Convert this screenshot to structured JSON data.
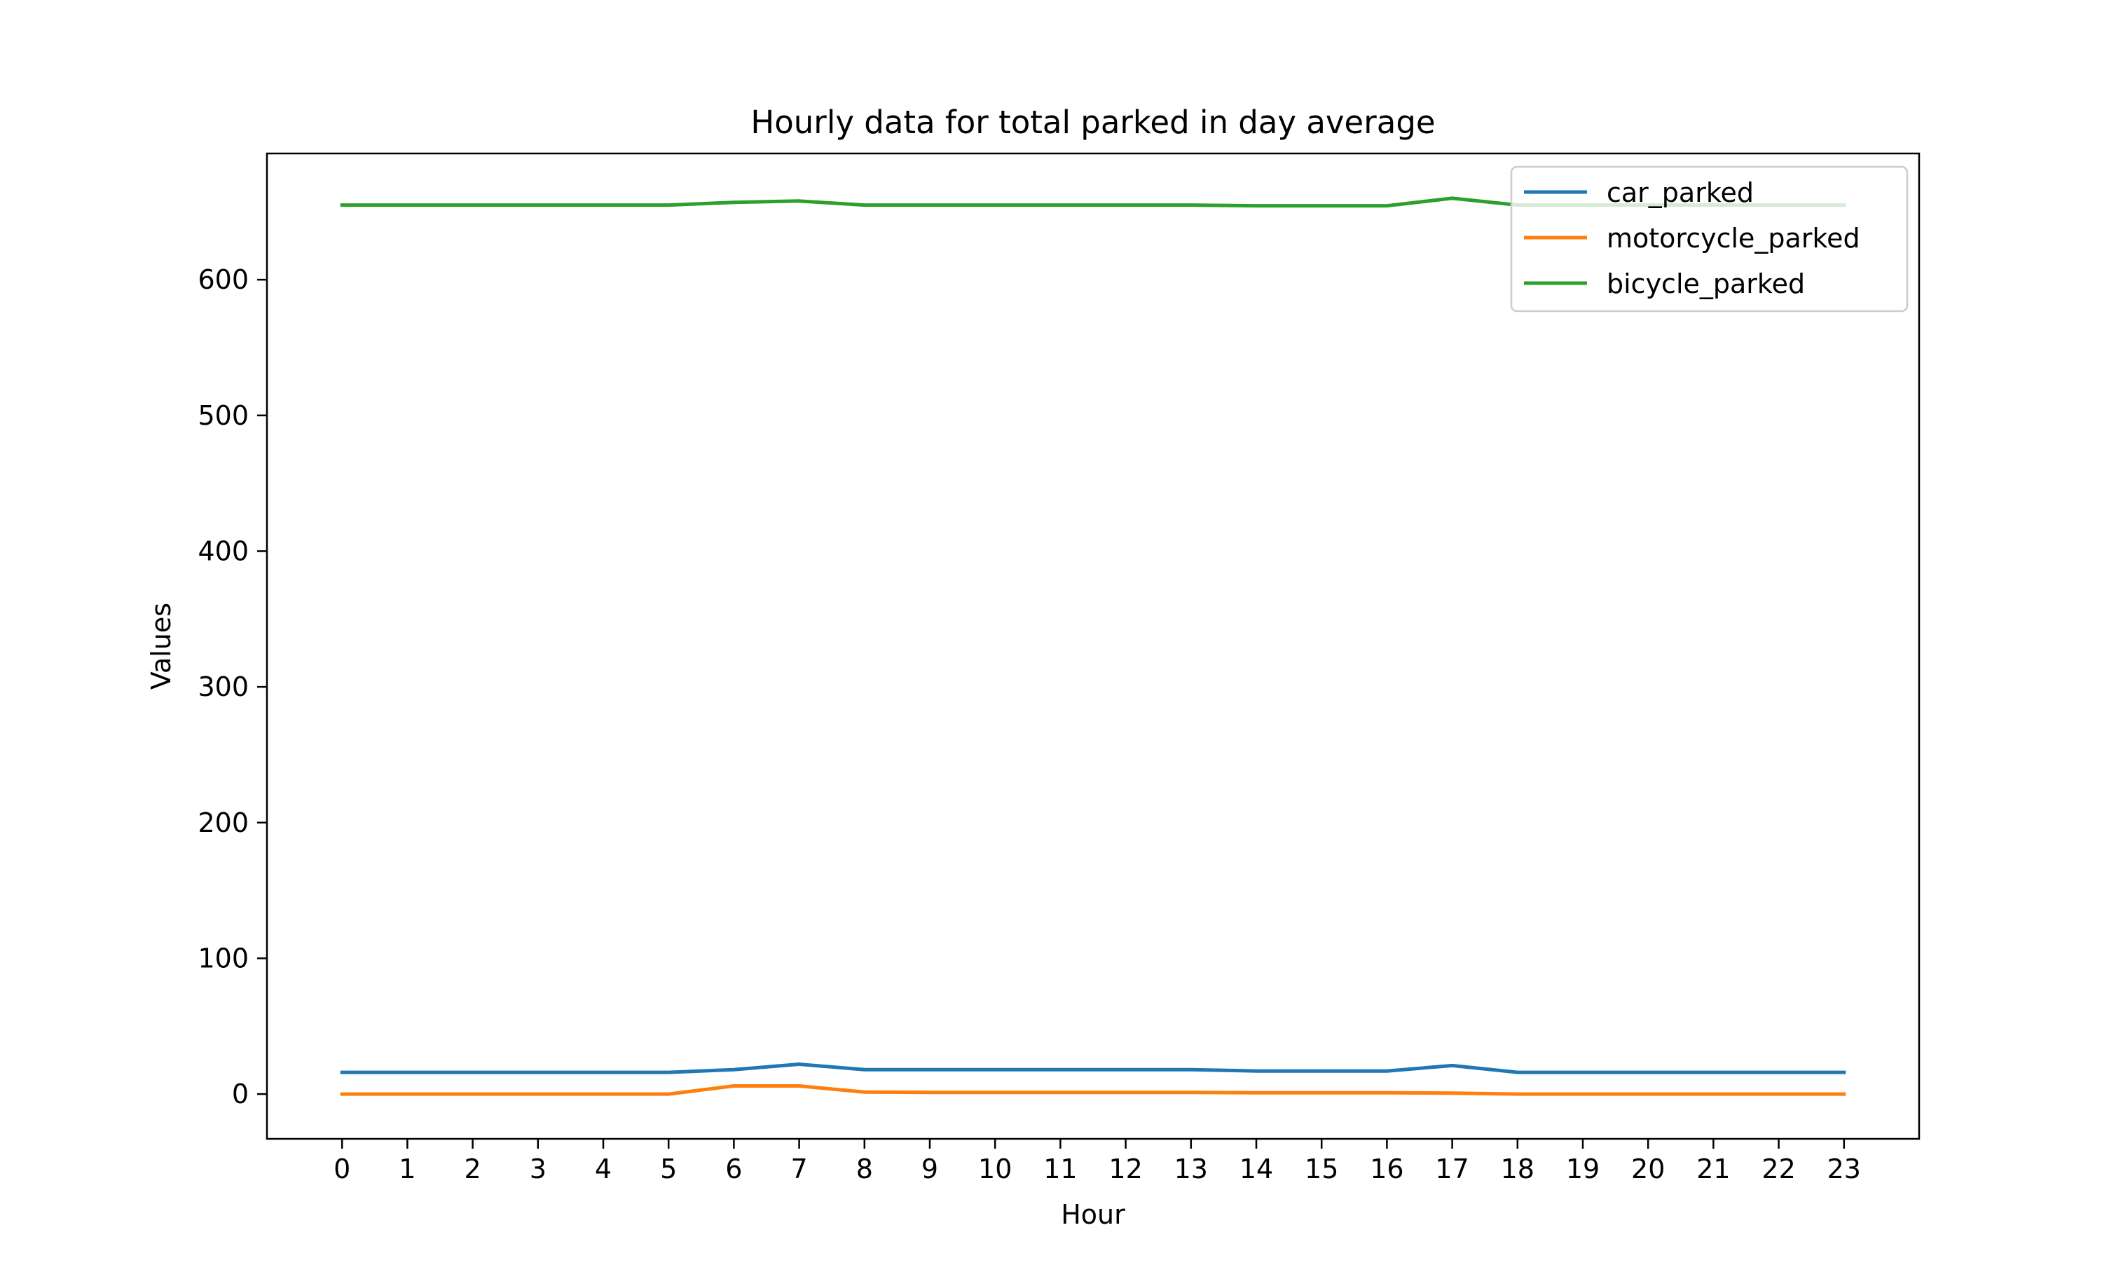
{
  "chart_data": {
    "type": "line",
    "title": "Hourly data for total parked in day average",
    "xlabel": "Hour",
    "ylabel": "Values",
    "x": [
      0,
      1,
      2,
      3,
      4,
      5,
      6,
      7,
      8,
      9,
      10,
      11,
      12,
      13,
      14,
      15,
      16,
      17,
      18,
      19,
      20,
      21,
      22,
      23
    ],
    "x_ticks": [
      "0",
      "1",
      "2",
      "3",
      "4",
      "5",
      "6",
      "7",
      "8",
      "9",
      "10",
      "11",
      "12",
      "13",
      "14",
      "15",
      "16",
      "17",
      "18",
      "19",
      "20",
      "21",
      "22",
      "23"
    ],
    "y_ticks": [
      0,
      100,
      200,
      300,
      400,
      500,
      600
    ],
    "xlim": [
      -1.15,
      24.15
    ],
    "ylim": [
      -33,
      693
    ],
    "grid": false,
    "legend_position": "upper right",
    "series": [
      {
        "name": "car_parked",
        "color": "#1f77b4",
        "values": [
          16,
          16,
          16,
          16,
          16,
          16,
          18,
          22,
          18,
          18,
          18,
          18,
          18,
          18,
          17,
          17,
          17,
          21,
          16,
          16,
          16,
          16,
          16,
          16
        ]
      },
      {
        "name": "motorcycle_parked",
        "color": "#ff7f0e",
        "values": [
          0,
          0,
          0,
          0,
          0,
          0,
          6,
          6,
          1.5,
          1.2,
          1.2,
          1.2,
          1.2,
          1.2,
          1,
          1,
          1,
          0.7,
          0,
          0,
          0,
          0,
          0,
          0
        ]
      },
      {
        "name": "bicycle_parked",
        "color": "#2ca02c",
        "values": [
          655,
          655,
          655,
          655,
          655,
          655,
          657,
          658,
          655,
          655,
          655,
          655,
          655,
          655,
          654.5,
          654.5,
          654.5,
          660,
          655,
          655,
          655,
          655,
          655,
          655
        ]
      }
    ]
  }
}
